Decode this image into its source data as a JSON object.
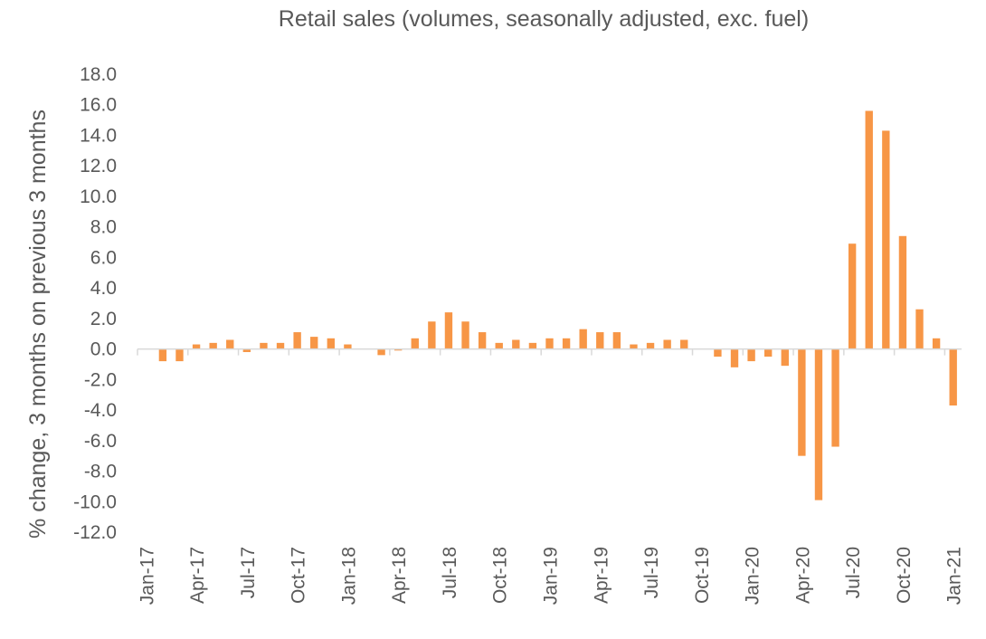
{
  "chart_data": {
    "type": "bar",
    "title": "Retail sales (volumes, seasonally adjusted, exc. fuel)",
    "xlabel": "",
    "ylabel": "% change, 3 months on previous 3 months",
    "ylim": [
      -12,
      18
    ],
    "ytick_step": 2,
    "ytick_labels": [
      "-12.0",
      "-10.0",
      "-8.0",
      "-6.0",
      "-4.0",
      "-2.0",
      "0.0",
      "2.0",
      "4.0",
      "6.0",
      "8.0",
      "10.0",
      "12.0",
      "14.0",
      "16.0",
      "18.0"
    ],
    "grid": false,
    "bar_color": "#F79646",
    "xtick_labels": [
      "Jan-17",
      "Apr-17",
      "Jul-17",
      "Oct-17",
      "Jan-18",
      "Apr-18",
      "Jul-18",
      "Oct-18",
      "Jan-19",
      "Apr-19",
      "Jul-19",
      "Oct-19",
      "Jan-20",
      "Apr-20",
      "Jul-20",
      "Oct-20",
      "Jan-21"
    ],
    "categories": [
      "Jan-17",
      "Feb-17",
      "Mar-17",
      "Apr-17",
      "May-17",
      "Jun-17",
      "Jul-17",
      "Aug-17",
      "Sep-17",
      "Oct-17",
      "Nov-17",
      "Dec-17",
      "Jan-18",
      "Feb-18",
      "Mar-18",
      "Apr-18",
      "May-18",
      "Jun-18",
      "Jul-18",
      "Aug-18",
      "Sep-18",
      "Oct-18",
      "Nov-18",
      "Dec-18",
      "Jan-19",
      "Feb-19",
      "Mar-19",
      "Apr-19",
      "May-19",
      "Jun-19",
      "Jul-19",
      "Aug-19",
      "Sep-19",
      "Oct-19",
      "Nov-19",
      "Dec-19",
      "Jan-20",
      "Feb-20",
      "Mar-20",
      "Apr-20",
      "May-20",
      "Jun-20",
      "Jul-20",
      "Aug-20",
      "Sep-20",
      "Oct-20",
      "Nov-20",
      "Dec-20",
      "Jan-21"
    ],
    "values": [
      0.0,
      -0.8,
      -0.8,
      0.3,
      0.4,
      0.6,
      -0.2,
      0.4,
      0.4,
      1.1,
      0.8,
      0.7,
      0.3,
      0.0,
      -0.4,
      -0.1,
      0.7,
      1.8,
      2.4,
      1.8,
      1.1,
      0.4,
      0.6,
      0.4,
      0.7,
      0.7,
      1.3,
      1.1,
      1.1,
      0.3,
      0.4,
      0.6,
      0.6,
      0.0,
      -0.5,
      -1.2,
      -0.8,
      -0.5,
      -1.1,
      -7.0,
      -9.9,
      -6.4,
      6.9,
      15.6,
      14.3,
      7.4,
      2.6,
      0.7,
      -3.7
    ]
  }
}
